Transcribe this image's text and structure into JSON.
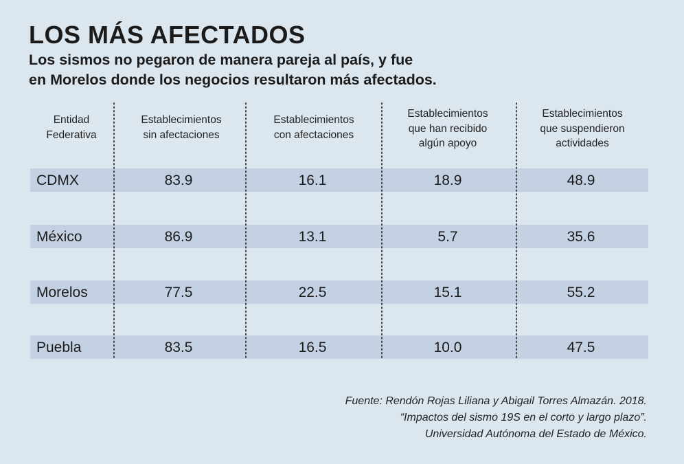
{
  "title": "LOS MÁS AFECTADOS",
  "subtitle_line1": "Los sismos no pegaron de manera pareja al país, y fue",
  "subtitle_line2": "en Morelos donde los negocios resultaron más afectados.",
  "chart_data": {
    "type": "table",
    "columns": [
      [
        "Entidad",
        "Federativa"
      ],
      [
        "Establecimientos",
        "sin afectaciones"
      ],
      [
        "Establecimientos",
        "con afectaciones"
      ],
      [
        "Establecimientos",
        "que han recibido",
        "algún apoyo"
      ],
      [
        "Establecimientos",
        "que suspendieron",
        "actividades"
      ]
    ],
    "rows": [
      {
        "entity": "CDMX",
        "values": [
          "83.9",
          "16.1",
          "18.9",
          "48.9"
        ]
      },
      {
        "entity": "México",
        "values": [
          "86.9",
          "13.1",
          "5.7",
          "35.6"
        ]
      },
      {
        "entity": "Morelos",
        "values": [
          "77.5",
          "22.5",
          "15.1",
          "55.2"
        ]
      },
      {
        "entity": "Puebla",
        "values": [
          "83.5",
          "16.5",
          "10.0",
          "47.5"
        ]
      }
    ]
  },
  "source": {
    "line1": "Fuente: Rendón Rojas Liliana y Abigail Torres Almazán. 2018.",
    "line2": "“Impactos del sismo 19S en el corto y largo plazo”.",
    "line3": "Universidad Autónoma del Estado de México."
  },
  "colors": {
    "background": "#dce6ef",
    "row_band": "#c4d1e3",
    "divider": "#444444",
    "text": "#1b1b1b"
  }
}
